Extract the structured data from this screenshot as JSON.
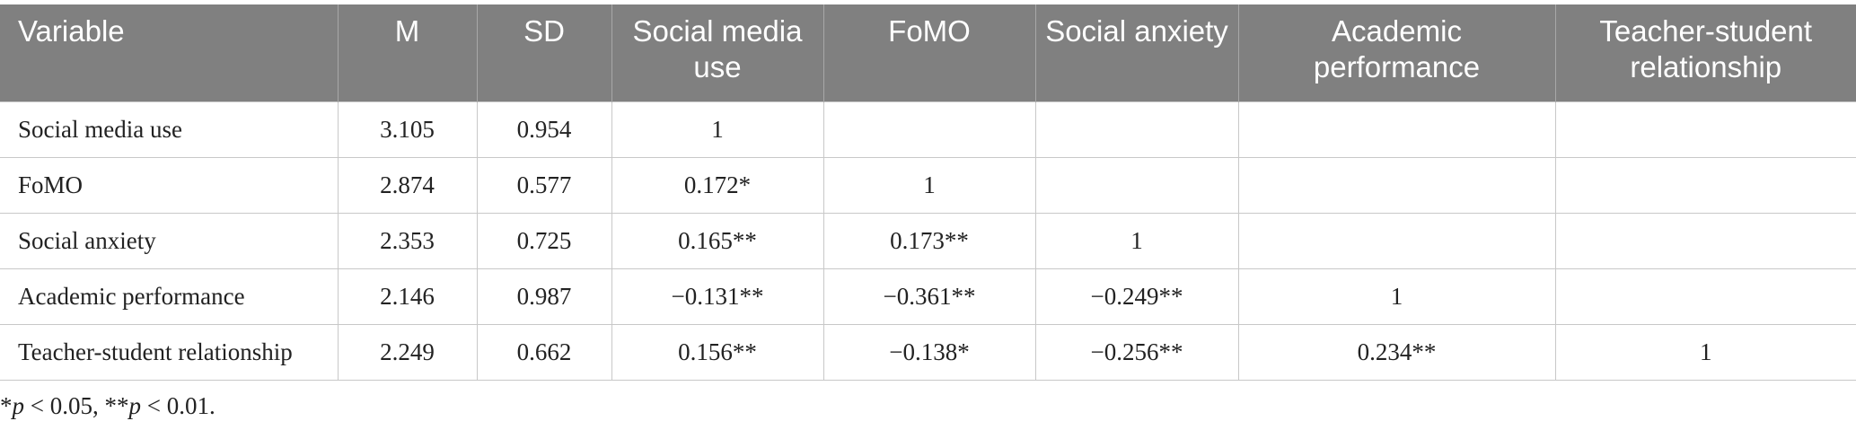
{
  "table": {
    "headers": [
      "Variable",
      "M",
      "SD",
      "Social media use",
      "FoMO",
      "Social anxiety",
      "Academic performance",
      "Teacher-student relationship"
    ],
    "rows": [
      [
        "Social media use",
        "3.105",
        "0.954",
        "1",
        "",
        "",
        "",
        ""
      ],
      [
        "FoMO",
        "2.874",
        "0.577",
        "0.172*",
        "1",
        "",
        "",
        ""
      ],
      [
        "Social anxiety",
        "2.353",
        "0.725",
        "0.165**",
        "0.173**",
        "1",
        "",
        ""
      ],
      [
        "Academic performance",
        "2.146",
        "0.987",
        "−0.131**",
        "−0.361**",
        "−0.249**",
        "1",
        ""
      ],
      [
        "Teacher-student relationship",
        "2.249",
        "0.662",
        "0.156**",
        "−0.138*",
        "−0.256**",
        "0.234**",
        "1"
      ]
    ]
  },
  "note": {
    "star1": "*",
    "p1": "p",
    "t1": " < 0.05, **",
    "p2": "p",
    "t2": " < 0.01."
  }
}
